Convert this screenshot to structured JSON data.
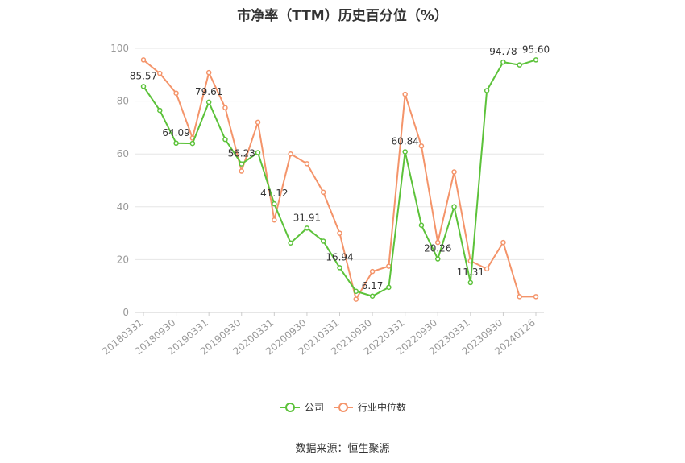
{
  "title": "市净率（TTM）历史百分位（%）",
  "source": "数据来源：恒生聚源",
  "chart_data": {
    "type": "line",
    "title": "市净率（TTM）历史百分位（%）",
    "ylim": [
      0,
      100
    ],
    "yticks": [
      0,
      20,
      40,
      60,
      80,
      100
    ],
    "grid": true,
    "legend_position": "bottom",
    "x": [
      "20180331",
      "20180630",
      "20180930",
      "20181231",
      "20190331",
      "20190630",
      "20190930",
      "20191231",
      "20200331",
      "20200630",
      "20200930",
      "20201231",
      "20210331",
      "20210630",
      "20210930",
      "20211231",
      "20220331",
      "20220630",
      "20220930",
      "20221231",
      "20230331",
      "20230630",
      "20230930",
      "20231231",
      "20240126"
    ],
    "xtick_labels": [
      "20180331",
      "20180930",
      "20190331",
      "20190930",
      "20200331",
      "20200930",
      "20210331",
      "20210930",
      "20220331",
      "20220930",
      "20230331",
      "20230930",
      "20240126"
    ],
    "series": [
      {
        "name": "公司",
        "color": "#5cc23a",
        "values": [
          85.57,
          76.5,
          64.09,
          64.0,
          79.61,
          65.5,
          56.23,
          60.5,
          41.12,
          26.3,
          31.91,
          27.0,
          16.94,
          8.0,
          6.17,
          9.5,
          60.84,
          33.0,
          20.26,
          40.0,
          11.31,
          84.0,
          94.78,
          93.7,
          95.6
        ],
        "labels": [
          "85.57",
          "",
          "64.09",
          "",
          "79.61",
          "",
          "56.23",
          "",
          "41.12",
          "",
          "31.91",
          "",
          "16.94",
          "",
          "6.17",
          "",
          "60.84",
          "",
          "20.26",
          "",
          "11.31",
          "",
          "94.78",
          "",
          "95.60"
        ]
      },
      {
        "name": "行业中位数",
        "color": "#f4946a",
        "values": [
          95.6,
          90.5,
          83.0,
          66.0,
          90.8,
          77.5,
          53.5,
          72.0,
          35.0,
          60.0,
          56.3,
          45.5,
          30.0,
          5.0,
          15.5,
          17.5,
          82.6,
          63.0,
          26.5,
          53.2,
          19.5,
          16.5,
          26.5,
          6.0,
          6.0
        ],
        "labels": []
      }
    ]
  }
}
